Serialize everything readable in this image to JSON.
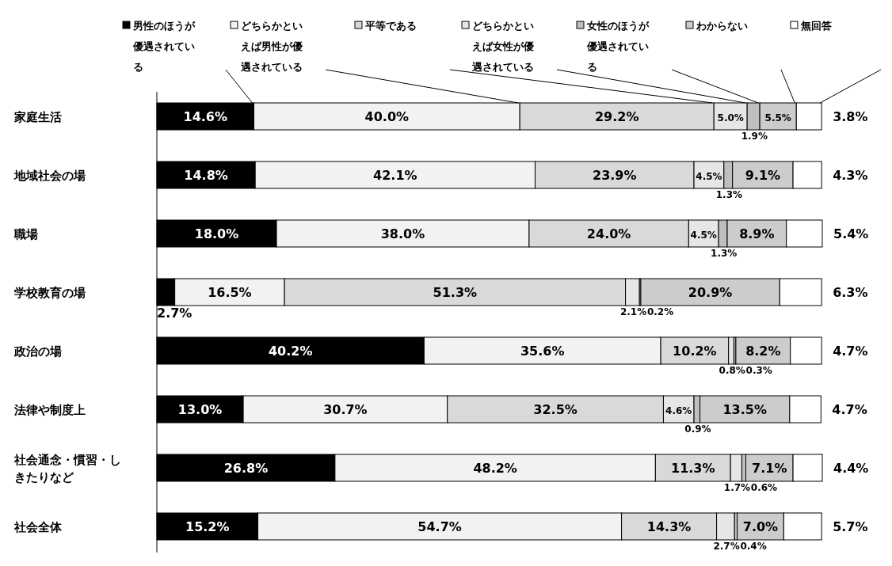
{
  "chart_data": {
    "type": "bar",
    "orientation": "horizontal",
    "stacked": true,
    "categories": [
      "家庭生活",
      "地域社会の場",
      "職場",
      "学校教育の場",
      "政治の場",
      "法律や制度上",
      "社会通念・慣習・しきたりなど",
      "社会全体"
    ],
    "series": [
      {
        "name": "男性のほうが優遇されている",
        "color": "#000000",
        "values": [
          14.6,
          14.8,
          18.0,
          2.7,
          40.2,
          13.0,
          26.8,
          15.2
        ],
        "value_labels": [
          "14.6%",
          "14.8%",
          "18.0%",
          "2.7%",
          "40.2%",
          "13.0%",
          "26.8%",
          "15.2%"
        ]
      },
      {
        "name": "どちらかといえば男性が優遇されている",
        "color": "#f2f2f2",
        "values": [
          40.0,
          42.1,
          38.0,
          16.5,
          35.6,
          30.7,
          48.2,
          54.7
        ],
        "value_labels": [
          "40.0%",
          "42.1%",
          "38.0%",
          "16.5%",
          "35.6%",
          "30.7%",
          "48.2%",
          "54.7%"
        ]
      },
      {
        "name": "平等である",
        "color": "#d9d9d9",
        "values": [
          29.2,
          23.9,
          24.0,
          51.3,
          10.2,
          32.5,
          11.3,
          14.3
        ],
        "value_labels": [
          "29.2%",
          "23.9%",
          "24.0%",
          "51.3%",
          "10.2%",
          "32.5%",
          "11.3%",
          "14.3%"
        ]
      },
      {
        "name": "どちらかといえば女性が優遇されている",
        "color": "#e6e6e6",
        "values": [
          5.0,
          4.5,
          4.5,
          2.1,
          0.8,
          4.6,
          1.7,
          2.7
        ],
        "value_labels": [
          "5.0%",
          "4.5%",
          "4.5%",
          "2.1%",
          "0.8%",
          "4.6%",
          "1.7%",
          "2.7%"
        ]
      },
      {
        "name": "女性のほうが優遇されている",
        "color": "#bfbfbf",
        "values": [
          1.9,
          1.3,
          1.3,
          0.2,
          0.3,
          0.9,
          0.6,
          0.4
        ],
        "value_labels": [
          "1.9%",
          "1.3%",
          "1.3%",
          "0.2%",
          "0.3%",
          "0.9%",
          "0.6%",
          "0.4%"
        ]
      },
      {
        "name": "わからない",
        "color": "#cccccc",
        "values": [
          5.5,
          9.1,
          8.9,
          20.9,
          8.2,
          13.5,
          7.1,
          7.0
        ],
        "value_labels": [
          "5.5%",
          "9.1%",
          "8.9%",
          "20.9%",
          "8.2%",
          "13.5%",
          "7.1%",
          "7.0%"
        ]
      },
      {
        "name": "無回答",
        "color": "#ffffff",
        "values": [
          3.8,
          4.3,
          5.4,
          6.3,
          4.7,
          4.7,
          4.4,
          5.7
        ],
        "value_labels": [
          "3.8%",
          "4.3%",
          "5.4%",
          "6.3%",
          "4.7%",
          "4.7%",
          "4.4%",
          "5.7%"
        ]
      }
    ],
    "tick_labels": "y",
    "legend": "top"
  }
}
